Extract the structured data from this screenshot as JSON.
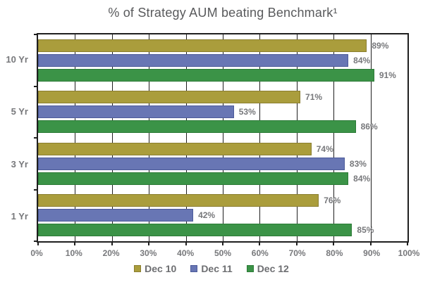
{
  "colors": {
    "title_text": "#595a5c",
    "label_text": "#77787b",
    "axis_line": "#1f1f1f",
    "background": "#ffffff"
  },
  "chart_data": {
    "type": "bar",
    "orientation": "horizontal",
    "title": "% of Strategy AUM beating Benchmark¹",
    "categories": [
      "10 Yr",
      "5 Yr",
      "3 Yr",
      "1 Yr"
    ],
    "series": [
      {
        "name": "Dec 10",
        "color": "#aa9d3c",
        "border_color": "#8a7e2f",
        "values": [
          89,
          71,
          74,
          76
        ]
      },
      {
        "name": "Dec 11",
        "color": "#6876b4",
        "border_color": "#4c5a99",
        "values": [
          84,
          53,
          83,
          42
        ]
      },
      {
        "name": "Dec 12",
        "color": "#3b9347",
        "border_color": "#2c7b37",
        "values": [
          91,
          86,
          84,
          85
        ]
      }
    ],
    "value_label_suffix": "%",
    "x_ticks": [
      "0%",
      "10%",
      "20%",
      "30%",
      "40%",
      "50%",
      "60%",
      "70%",
      "80%",
      "90%",
      "100%"
    ],
    "xlim": [
      0,
      100
    ],
    "grid": true,
    "gridline_percents": [
      10,
      20,
      30,
      40,
      50,
      60,
      70,
      80,
      90
    ],
    "legend_position": "bottom"
  }
}
